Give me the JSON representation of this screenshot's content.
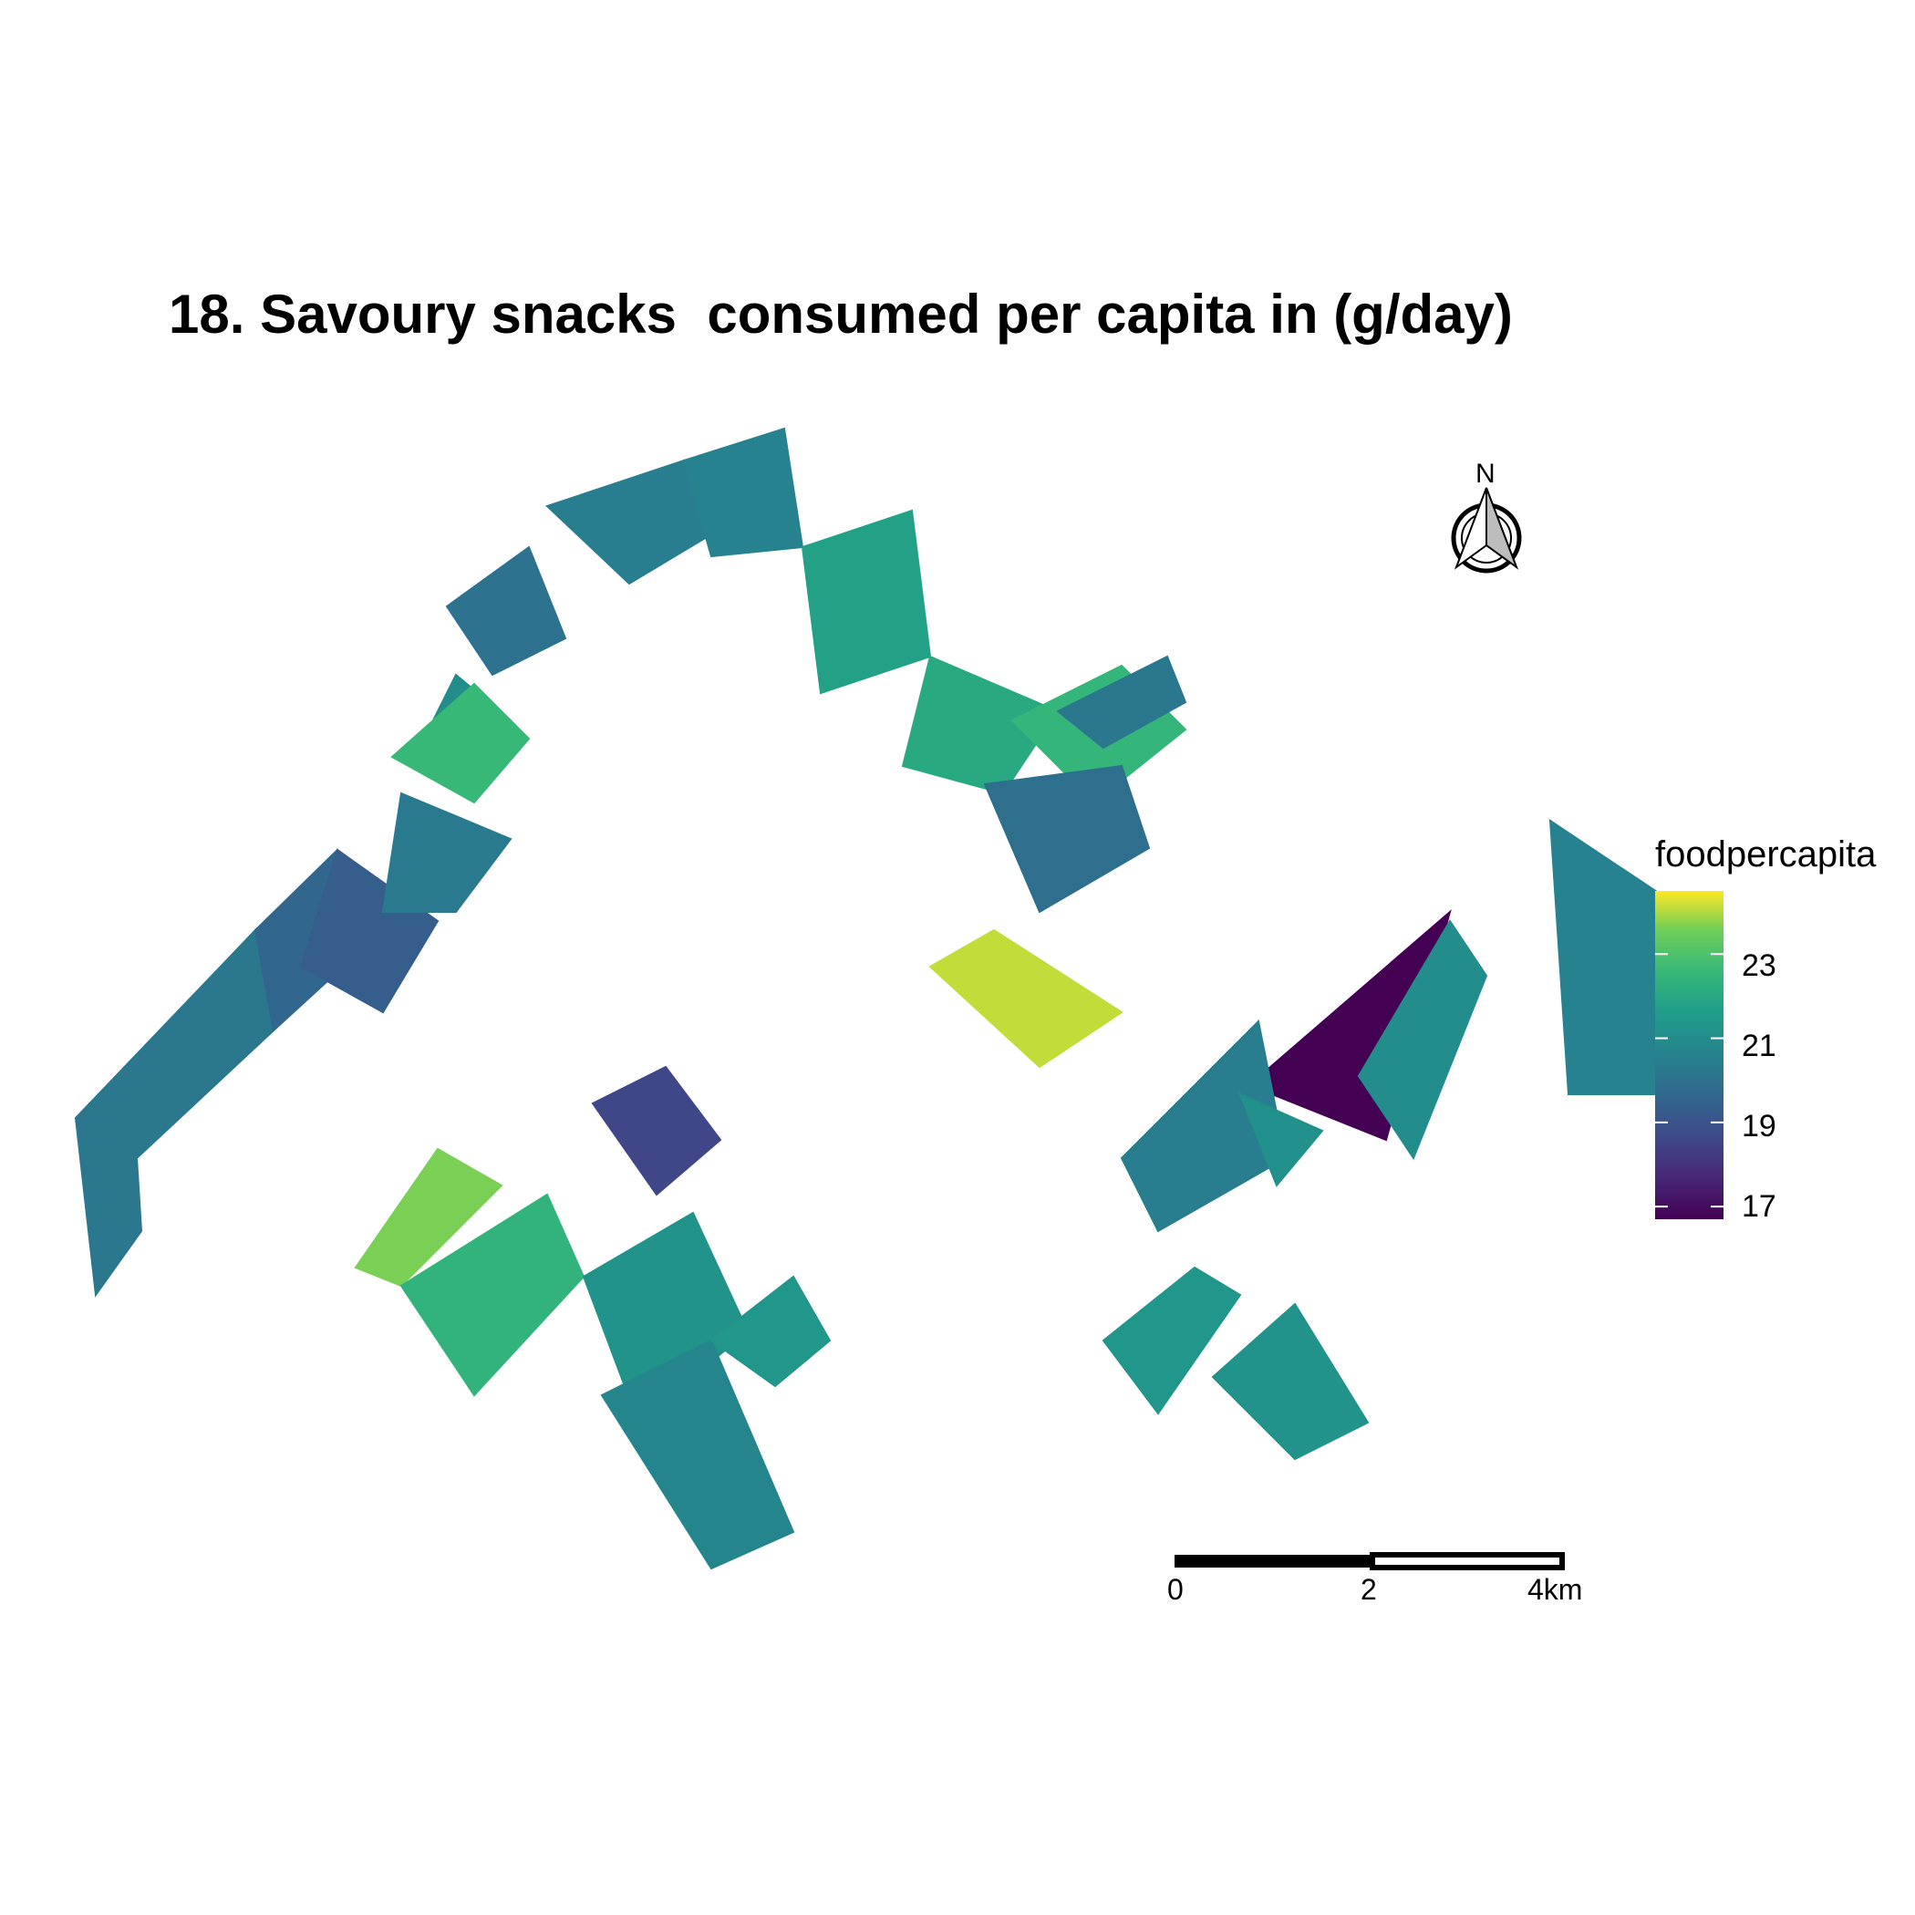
{
  "title": "18. Savoury snacks  consumed per capita in (g/day)",
  "legend": {
    "title": "foodpercapita",
    "ticks": [
      {
        "label": "23",
        "value": 23
      },
      {
        "label": "21",
        "value": 21
      },
      {
        "label": "19",
        "value": 19
      },
      {
        "label": "17",
        "value": 17
      }
    ],
    "range": [
      16.7,
      24.5
    ],
    "colormap": "viridis"
  },
  "north_arrow": {
    "label": "N"
  },
  "scale_bar": {
    "labels": [
      "0",
      "2",
      "4km"
    ]
  },
  "chart_data": {
    "type": "choropleth",
    "variable": "foodpercapita",
    "region_values": [
      20.2,
      19.6,
      19.3,
      20.3,
      21.0,
      22.6,
      20.0,
      20.4,
      20.6,
      21.7,
      22.0,
      22.5,
      19.9,
      20.2,
      18.6,
      23.6,
      22.4,
      21.2,
      20.7,
      21.3,
      24.1,
      16.7,
      21.0,
      20.4,
      21.3,
      21.2,
      20.6,
      21.1
    ]
  }
}
